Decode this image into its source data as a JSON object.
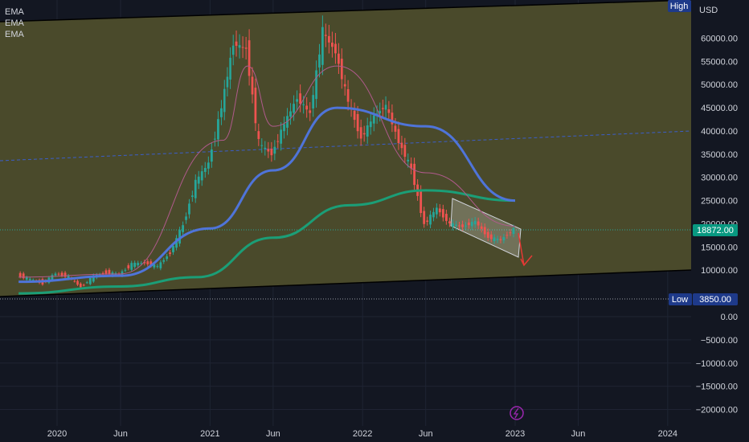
{
  "legend": [
    "EMA",
    "EMA",
    "EMA"
  ],
  "price_axis": {
    "currency": "USD"
  },
  "markers": {
    "high_label": "High",
    "low_label": "Low",
    "low_value": "3850.00",
    "last_price": "18872.00"
  },
  "colors": {
    "background": "#131722",
    "channel_fill": "#4a4a2b",
    "up": "#26a69a",
    "down": "#ef5350",
    "ema_fast": "#b05a8c",
    "ema_mid": "#4f74d9",
    "ema_slow": "#1b9e77",
    "trendline": "#3b5ec9",
    "projection": "#e53935"
  },
  "chart_data": {
    "type": "candlestick",
    "ylim": [
      -22000,
      71000
    ],
    "y_ticks": [
      "60000.00",
      "55000.00",
      "50000.00",
      "45000.00",
      "40000.00",
      "35000.00",
      "30000.00",
      "25000.00",
      "20000.00",
      "15000.00",
      "10000.00",
      "0.00",
      "−5000.00",
      "−10000.00",
      "−15000.00",
      "−20000.00"
    ],
    "x_ticks": [
      "2020",
      "Jun",
      "2021",
      "Jun",
      "2022",
      "Jun",
      "2023",
      "Jun",
      "2024"
    ],
    "close_series": [
      [
        "2019-10-01",
        9000
      ],
      [
        "2019-11-01",
        8000
      ],
      [
        "2019-12-01",
        7200
      ],
      [
        "2020-01-01",
        9300
      ],
      [
        "2020-02-01",
        8600
      ],
      [
        "2020-03-01",
        6400
      ],
      [
        "2020-04-01",
        8700
      ],
      [
        "2020-05-01",
        9500
      ],
      [
        "2020-06-01",
        9100
      ],
      [
        "2020-07-01",
        11300
      ],
      [
        "2020-08-01",
        11600
      ],
      [
        "2020-09-01",
        10800
      ],
      [
        "2020-10-01",
        13800
      ],
      [
        "2020-11-01",
        19700
      ],
      [
        "2020-12-01",
        29000
      ],
      [
        "2021-01-01",
        33100
      ],
      [
        "2021-02-01",
        45200
      ],
      [
        "2021-03-01",
        58800
      ],
      [
        "2021-04-01",
        57700
      ],
      [
        "2021-05-01",
        37300
      ],
      [
        "2021-06-01",
        35000
      ],
      [
        "2021-07-01",
        41500
      ],
      [
        "2021-08-01",
        47100
      ],
      [
        "2021-09-01",
        43800
      ],
      [
        "2021-10-01",
        61300
      ],
      [
        "2021-11-01",
        57000
      ],
      [
        "2021-12-01",
        46300
      ],
      [
        "2022-01-01",
        38500
      ],
      [
        "2022-02-01",
        43200
      ],
      [
        "2022-03-01",
        45500
      ],
      [
        "2022-04-01",
        37700
      ],
      [
        "2022-05-01",
        31800
      ],
      [
        "2022-06-01",
        19900
      ],
      [
        "2022-07-01",
        23300
      ],
      [
        "2022-08-01",
        20000
      ],
      [
        "2022-09-01",
        19400
      ],
      [
        "2022-10-01",
        20500
      ],
      [
        "2022-11-01",
        17100
      ],
      [
        "2022-12-01",
        16500
      ],
      [
        "2023-01-01",
        18872
      ]
    ],
    "ema_slow": [
      [
        "2019-10-01",
        5000
      ],
      [
        "2020-06-01",
        6500
      ],
      [
        "2020-12-01",
        8500
      ],
      [
        "2021-06-01",
        17000
      ],
      [
        "2021-12-01",
        24000
      ],
      [
        "2022-06-01",
        27200
      ],
      [
        "2023-01-01",
        25000
      ]
    ],
    "ema_mid": [
      [
        "2019-10-01",
        7500
      ],
      [
        "2020-06-01",
        8800
      ],
      [
        "2021-01-01",
        19000
      ],
      [
        "2021-06-01",
        31500
      ],
      [
        "2021-11-01",
        45000
      ],
      [
        "2022-06-01",
        41000
      ],
      [
        "2023-01-01",
        25000
      ]
    ],
    "ema_fast": [
      [
        "2019-10-01",
        8500
      ],
      [
        "2020-06-01",
        9200
      ],
      [
        "2021-02-01",
        38000
      ],
      [
        "2021-04-01",
        54000
      ],
      [
        "2021-06-01",
        41000
      ],
      [
        "2021-11-01",
        54000
      ],
      [
        "2022-06-01",
        31000
      ],
      [
        "2023-01-01",
        19500
      ]
    ],
    "annotations": [
      {
        "type": "price_line",
        "label": "Low",
        "value": 3850
      },
      {
        "type": "last_price",
        "value": 18872
      }
    ]
  }
}
